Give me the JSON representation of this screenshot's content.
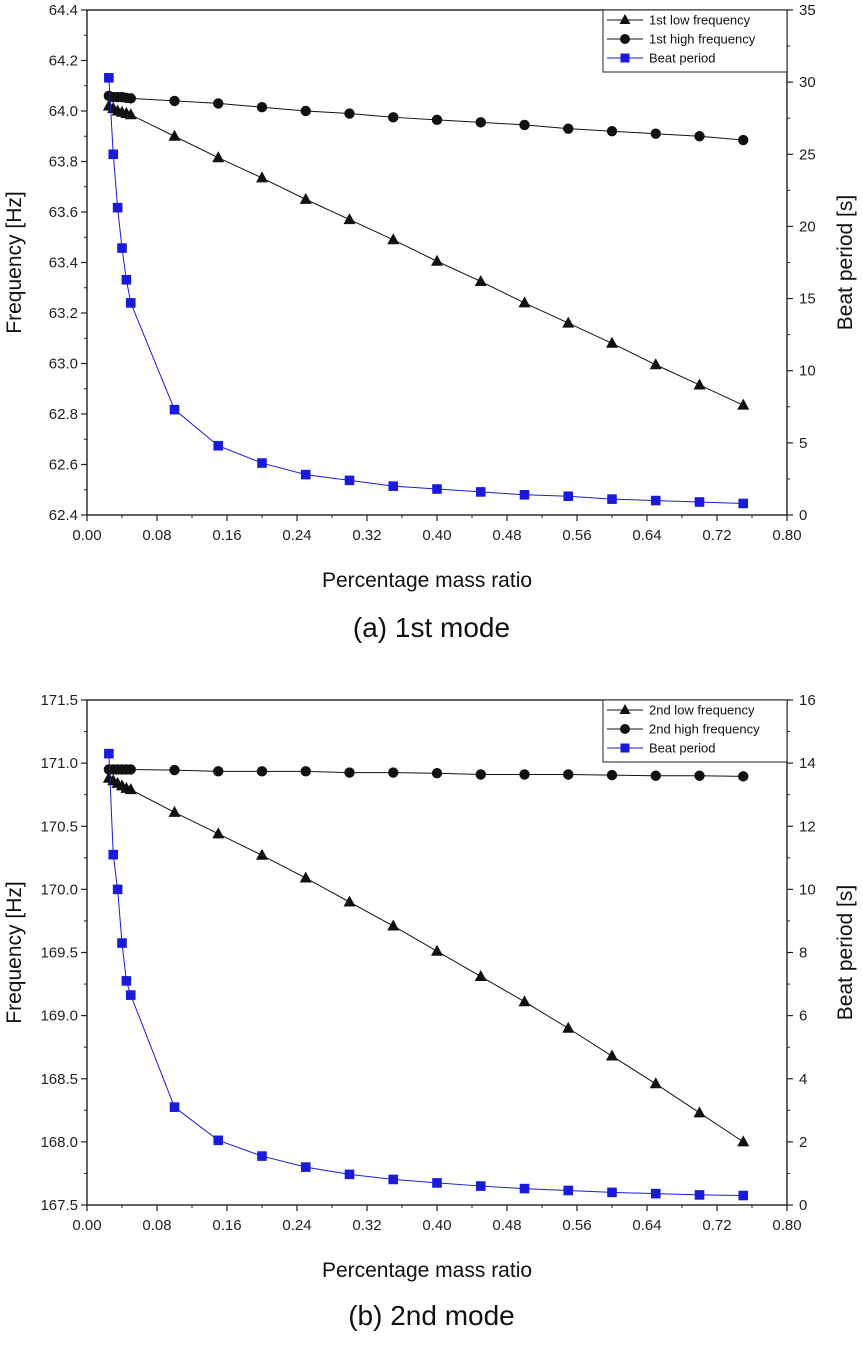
{
  "chart_data": [
    {
      "type": "line",
      "caption": "(a) 1st mode",
      "xlabel": "Percentage mass ratio",
      "ylabel": "Frequency [Hz]",
      "y2label": "Beat period [s]",
      "xlim": [
        0.0,
        0.8
      ],
      "ylim": [
        62.4,
        64.4
      ],
      "y2lim": [
        0,
        35
      ],
      "xticks": [
        "0.00",
        "0.08",
        "0.16",
        "0.24",
        "0.32",
        "0.40",
        "0.48",
        "0.56",
        "0.64",
        "0.72",
        "0.80"
      ],
      "yticks": [
        "62.4",
        "62.6",
        "62.8",
        "63.0",
        "63.2",
        "63.4",
        "63.6",
        "63.8",
        "64.0",
        "64.2",
        "64.4"
      ],
      "y2ticks": [
        "0",
        "5",
        "10",
        "15",
        "20",
        "25",
        "30",
        "35"
      ],
      "legend_position": "top-right",
      "x": [
        0.025,
        0.03,
        0.035,
        0.04,
        0.045,
        0.05,
        0.1,
        0.15,
        0.2,
        0.25,
        0.3,
        0.35,
        0.4,
        0.45,
        0.5,
        0.55,
        0.6,
        0.65,
        0.7,
        0.75
      ],
      "series": [
        {
          "name": "1st low frequency",
          "axis": "left",
          "marker": "triangle",
          "color": "#111111",
          "values": [
            64.02,
            64.01,
            64.0,
            63.995,
            63.99,
            63.985,
            63.9,
            63.815,
            63.735,
            63.65,
            63.57,
            63.49,
            63.405,
            63.325,
            63.24,
            63.16,
            63.08,
            62.995,
            62.915,
            62.835
          ]
        },
        {
          "name": "1st high frequency",
          "axis": "left",
          "marker": "circle",
          "color": "#111111",
          "values": [
            64.06,
            64.055,
            64.055,
            64.055,
            64.052,
            64.05,
            64.04,
            64.03,
            64.015,
            64.0,
            63.99,
            63.975,
            63.965,
            63.955,
            63.945,
            63.93,
            63.92,
            63.91,
            63.9,
            63.885
          ]
        },
        {
          "name": "Beat period",
          "axis": "right",
          "marker": "square",
          "color": "#1a1adb",
          "values": [
            30.3,
            25.0,
            21.3,
            18.5,
            16.3,
            14.7,
            7.3,
            4.8,
            3.6,
            2.8,
            2.4,
            2.0,
            1.8,
            1.6,
            1.4,
            1.3,
            1.1,
            1.0,
            0.9,
            0.8
          ]
        }
      ]
    },
    {
      "type": "line",
      "caption": "(b) 2nd mode",
      "xlabel": "Percentage mass ratio",
      "ylabel": "Frequency [Hz]",
      "y2label": "Beat period [s]",
      "xlim": [
        0.0,
        0.8
      ],
      "ylim": [
        167.5,
        171.5
      ],
      "y2lim": [
        0,
        16
      ],
      "xticks": [
        "0.00",
        "0.08",
        "0.16",
        "0.24",
        "0.32",
        "0.40",
        "0.48",
        "0.56",
        "0.64",
        "0.72",
        "0.80"
      ],
      "yticks": [
        "167.5",
        "168.0",
        "168.5",
        "169.0",
        "169.5",
        "170.0",
        "170.5",
        "171.0",
        "171.5"
      ],
      "y2ticks": [
        "0",
        "2",
        "4",
        "6",
        "8",
        "10",
        "12",
        "14",
        "16"
      ],
      "legend_position": "top-right",
      "x": [
        0.025,
        0.03,
        0.035,
        0.04,
        0.045,
        0.05,
        0.1,
        0.15,
        0.2,
        0.25,
        0.3,
        0.35,
        0.4,
        0.45,
        0.5,
        0.55,
        0.6,
        0.65,
        0.7,
        0.75
      ],
      "series": [
        {
          "name": "2nd low frequency",
          "axis": "left",
          "marker": "triangle",
          "color": "#111111",
          "values": [
            170.88,
            170.86,
            170.84,
            170.82,
            170.8,
            170.79,
            170.61,
            170.44,
            170.27,
            170.09,
            169.9,
            169.71,
            169.51,
            169.31,
            169.11,
            168.9,
            168.68,
            168.46,
            168.23,
            168.0
          ]
        },
        {
          "name": "2nd high frequency",
          "axis": "left",
          "marker": "circle",
          "color": "#111111",
          "values": [
            170.95,
            170.95,
            170.95,
            170.95,
            170.95,
            170.95,
            170.945,
            170.935,
            170.935,
            170.935,
            170.925,
            170.925,
            170.92,
            170.91,
            170.91,
            170.91,
            170.905,
            170.9,
            170.9,
            170.895
          ]
        },
        {
          "name": "Beat period",
          "axis": "right",
          "marker": "square",
          "color": "#1a1adb",
          "values": [
            14.3,
            11.1,
            10.0,
            8.3,
            7.1,
            6.65,
            3.1,
            2.05,
            1.55,
            1.2,
            0.97,
            0.81,
            0.7,
            0.6,
            0.52,
            0.46,
            0.4,
            0.36,
            0.32,
            0.3
          ]
        }
      ]
    }
  ]
}
